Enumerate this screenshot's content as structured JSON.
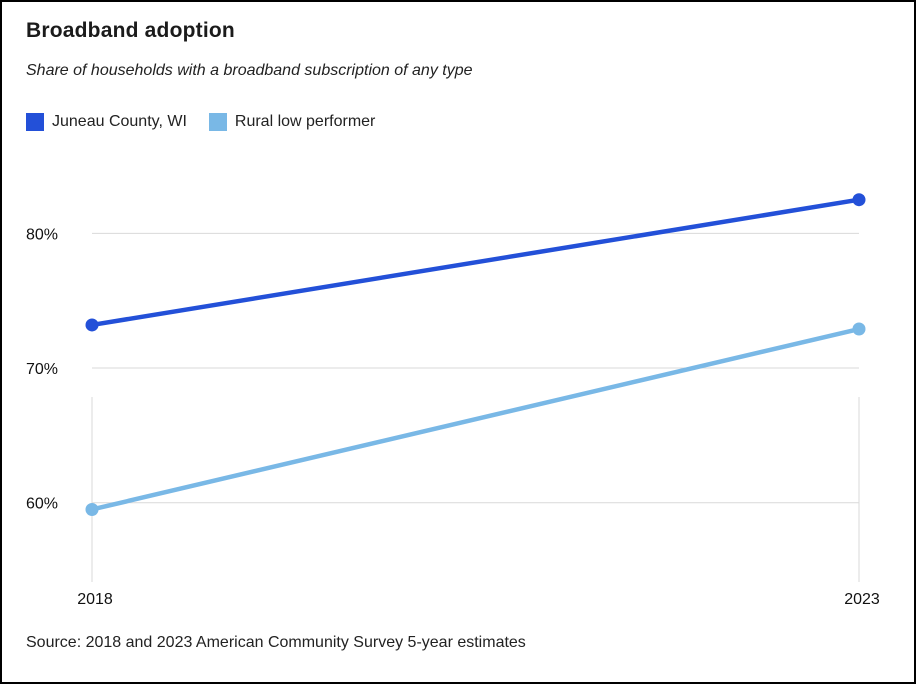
{
  "chart_data": {
    "type": "line",
    "title": "Broadband adoption",
    "subtitle": "Share of households with a broadband subscription of any type",
    "source": "Source: 2018 and 2023 American Community Survey 5-year estimates",
    "x": [
      "2018",
      "2023"
    ],
    "y_ticks": [
      {
        "value": 60,
        "label": "60%"
      },
      {
        "value": 70,
        "label": "70%"
      },
      {
        "value": 80,
        "label": "80%"
      }
    ],
    "ylim": [
      55.6,
      85.3
    ],
    "grid": true,
    "legend_position": "top-left",
    "series": [
      {
        "name": "Juneau County, WI",
        "color": "#2350d8",
        "values": [
          73.2,
          82.5
        ]
      },
      {
        "name": "Rural low performer",
        "color": "#79b8e6",
        "values": [
          59.5,
          72.9
        ]
      }
    ]
  }
}
